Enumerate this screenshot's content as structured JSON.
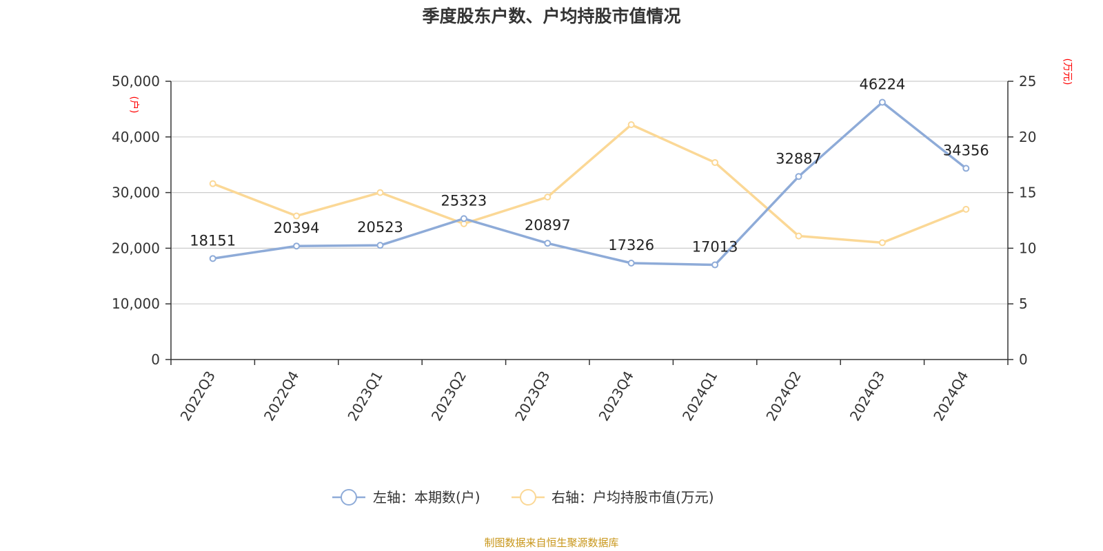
{
  "chart_data": {
    "type": "line",
    "title": "季度股东户数、户均持股市值情况",
    "categories": [
      "2022Q3",
      "2022Q4",
      "2023Q1",
      "2023Q2",
      "2023Q3",
      "2023Q4",
      "2024Q1",
      "2024Q2",
      "2024Q3",
      "2024Q4"
    ],
    "left_axis": {
      "unit": "(户)",
      "ylim": [
        0,
        50000
      ],
      "ticks": [
        "0",
        "10,000",
        "20,000",
        "30,000",
        "40,000",
        "50,000"
      ]
    },
    "right_axis": {
      "unit": "(万元)",
      "ylim": [
        0,
        25
      ],
      "ticks": [
        "0",
        "5",
        "10",
        "15",
        "20",
        "25"
      ]
    },
    "series": [
      {
        "name": "左轴：本期数(户)",
        "axis": "left",
        "color": "#8eabd8",
        "values": [
          18151,
          20394,
          20523,
          25323,
          20897,
          17326,
          17013,
          32887,
          46224,
          34356
        ],
        "data_labels": [
          "18151",
          "20394",
          "20523",
          "25323",
          "20897",
          "17326",
          "17013",
          "32887",
          "46224",
          "34356"
        ]
      },
      {
        "name": "右轴：户均持股市值(万元)",
        "axis": "right",
        "color": "#fbd896",
        "values": [
          15.8,
          12.9,
          15.0,
          12.2,
          14.6,
          21.1,
          17.7,
          11.1,
          10.5,
          13.5
        ]
      }
    ],
    "grid": true,
    "legend_position": "bottom-center"
  },
  "source_text": "制图数据来自恒生聚源数据库"
}
